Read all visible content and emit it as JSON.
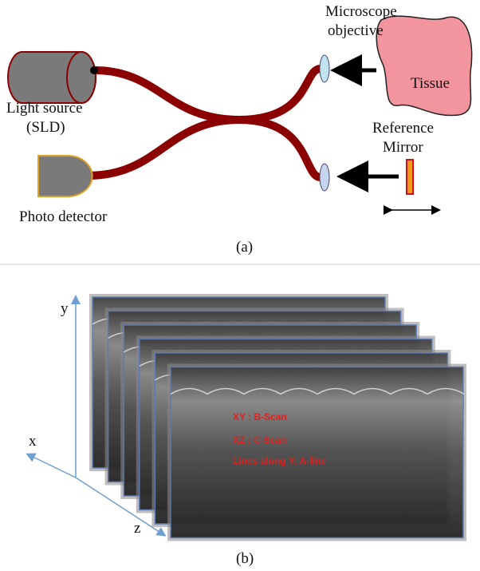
{
  "panel_a": {
    "light_source": [
      "Light source",
      "(SLD)"
    ],
    "photo_detector": "Photo detector",
    "microscope_objective": [
      "Microscope",
      "objective"
    ],
    "tissue": "Tissue",
    "reference_mirror": [
      "Reference",
      "Mirror"
    ],
    "caption": "(a)"
  },
  "panel_b": {
    "axes": {
      "y": "y",
      "x": "x",
      "z": "z"
    },
    "scan_labels": [
      "XY : B-Scan",
      "XZ : C-Scan",
      "Lines along Y: A-line"
    ],
    "caption": "(b)"
  }
}
